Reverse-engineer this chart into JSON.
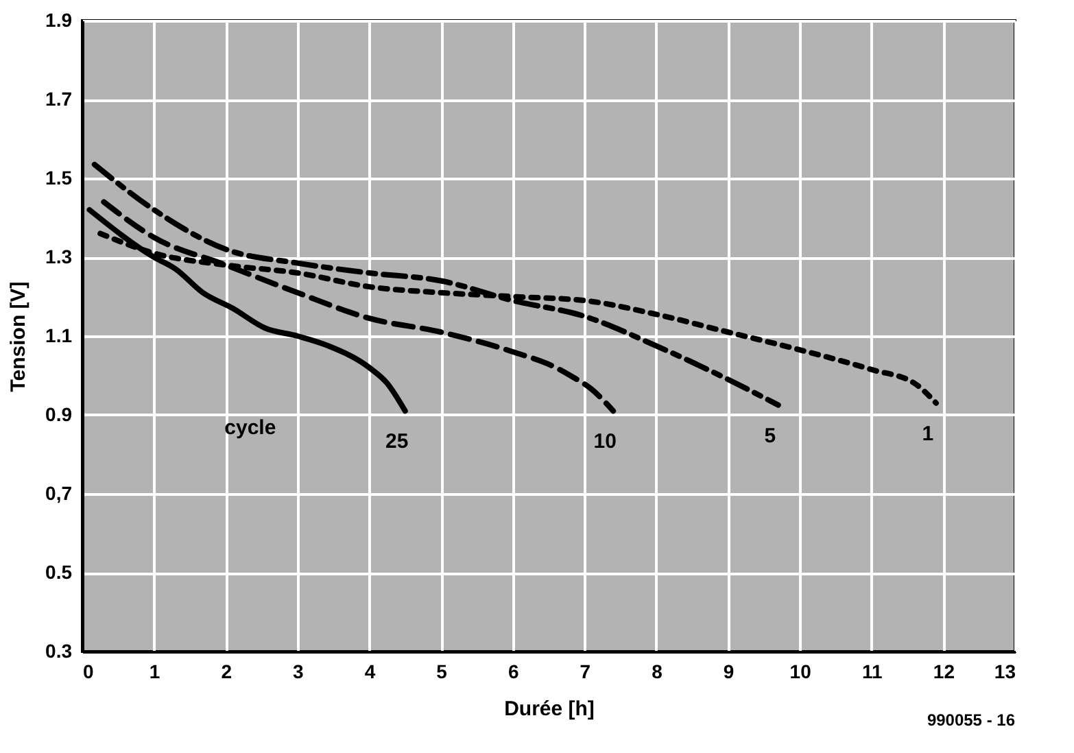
{
  "chart_data": {
    "type": "line",
    "xlabel": "Durée  [h]",
    "ylabel": "Tension [V]",
    "xlim": [
      0,
      13
    ],
    "xticks": [
      0,
      1,
      2,
      3,
      4,
      5,
      6,
      7,
      8,
      9,
      10,
      11,
      12,
      13
    ],
    "ylim": [
      0.3,
      1.9
    ],
    "yticks": [
      0.3,
      0.5,
      {
        "value": 0.7,
        "label": "0,7"
      },
      0.9,
      1.1,
      1.3,
      1.5,
      1.7,
      1.9
    ],
    "grid": true,
    "marker": "none",
    "series": [
      {
        "name": "25",
        "color": "#000000",
        "line_style": "solid",
        "x": [
          0.1,
          1.0,
          1.3,
          1.68,
          2.1,
          2.55,
          3.0,
          3.43,
          4.0,
          4.25,
          4.5
        ],
        "values": [
          1.42,
          1.3,
          1.27,
          1.21,
          1.17,
          1.12,
          1.1,
          1.075,
          1.02,
          0.98,
          0.91
        ]
      },
      {
        "name": "10",
        "color": "#000000",
        "line_style": "dashed",
        "x": [
          0.3,
          1.0,
          2.0,
          3.0,
          4.0,
          5.0,
          6.0,
          6.6,
          6.8,
          7.1,
          7.4
        ],
        "values": [
          1.44,
          1.35,
          1.28,
          1.21,
          1.145,
          1.11,
          1.06,
          1.02,
          1.0,
          0.965,
          0.91
        ]
      },
      {
        "name": "5",
        "color": "#000000",
        "line_style": "dashdot",
        "x": [
          0.17,
          1.0,
          2.0,
          3.0,
          4.0,
          5.0,
          6.0,
          7.0,
          8.0,
          9.0,
          9.7
        ],
        "values": [
          1.535,
          1.42,
          1.32,
          1.285,
          1.26,
          1.24,
          1.19,
          1.15,
          1.075,
          0.99,
          0.925
        ]
      },
      {
        "name": "1",
        "color": "#000000",
        "line_style": "dotted",
        "x": [
          0.25,
          1.0,
          2.0,
          3.0,
          4.0,
          5.0,
          6.0,
          7.0,
          8.0,
          9.0,
          10.0,
          11.0,
          11.6,
          11.9
        ],
        "values": [
          1.36,
          1.31,
          1.28,
          1.26,
          1.225,
          1.21,
          1.2,
          1.19,
          1.155,
          1.11,
          1.065,
          1.015,
          0.98,
          0.93
        ]
      }
    ],
    "annotations": [
      "cycle",
      "990055 - 16"
    ]
  }
}
